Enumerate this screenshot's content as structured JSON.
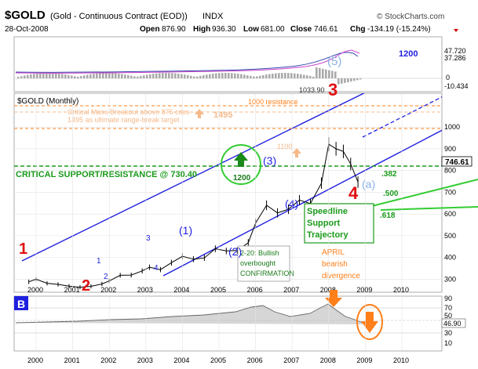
{
  "header": {
    "symbol": "$GOLD",
    "name": "(Gold - Continuous Contract (EOD))",
    "exchange": "INDX",
    "date": "28-Oct-2008",
    "source": "© StockCharts.com",
    "open_label": "Open",
    "open": "876.90",
    "high_label": "High",
    "high": "936.30",
    "low_label": "Low",
    "low": "681.00",
    "close_label": "Close",
    "close": "746.61",
    "chg_label": "Chg",
    "chg": "-134.19 (-15.24%)"
  },
  "macd_panel": {
    "labels": [
      "47.720",
      "37.286",
      "0",
      "-10.434"
    ],
    "peak_label": "1033.90",
    "wave_label": "(5)"
  },
  "main_panel": {
    "title": "$GOLD (Monthly)",
    "y_ticks": [
      "1000",
      "900",
      "800",
      "700",
      "600",
      "500",
      "400",
      "300"
    ],
    "price_tag": "746.61",
    "resistance_label": "1000 resistance",
    "critical_mass_line1": "Critical Mass Breakout above 875 cites",
    "critical_mass_line2": "1495 as ultimate range-break target",
    "target_1495": "1495",
    "target_1100": "1100",
    "target_1200_circle": "1200",
    "target_1200_channel": "1200",
    "support_label": "CRITICAL SUPPORT/RESISTANCE @ 730.40",
    "fib_382": ".382",
    "fib_500": ".500",
    "fib_618": ".618",
    "speedline_line1": "Speedline",
    "speedline_line2": "Support",
    "speedline_line3": "Trajectory",
    "wave_1_red": "1",
    "wave_2_red": "2",
    "wave_3_red": "3",
    "wave_4_red": "4",
    "minor_1": "1",
    "minor_2": "2",
    "minor_3": "3",
    "minor_4": "4",
    "int_1": "(1)",
    "int_2": "(2)",
    "int_3": "(3)",
    "int_4": "(4)",
    "int_a": "(a)",
    "april_line1": "APRIL",
    "april_line2": "bearish",
    "april_line3": "divergence",
    "bullish_line1": "2-20: Bullish",
    "bullish_line2": "overbought",
    "bullish_line3": "CONFIRMATION",
    "x_ticks": [
      "2000",
      "2001",
      "2002",
      "2003",
      "2004",
      "2005",
      "2006",
      "2007",
      "2008",
      "2009",
      "2010"
    ]
  },
  "rsi_panel": {
    "badge": "B",
    "labels": [
      "90",
      "70",
      "50",
      "46.90",
      "30",
      "10"
    ]
  },
  "colors": {
    "channel": "#1f1fe0",
    "wave_red": "#e01010",
    "support_green": "#1a9a1a",
    "orange": "#ff7f1a",
    "light_orange": "#f5b98a",
    "price": "#000000"
  },
  "chart_data": {
    "type": "line",
    "title": "$GOLD (Monthly)",
    "xlabel": "",
    "ylabel": "",
    "ylim": [
      240,
      1080
    ],
    "x": [
      1999.8,
      2000.0,
      2000.3,
      2000.6,
      2000.9,
      2001.2,
      2001.5,
      2001.8,
      2002.0,
      2002.3,
      2002.6,
      2002.9,
      2003.1,
      2003.4,
      2003.7,
      2004.0,
      2004.3,
      2004.6,
      2004.9,
      2005.2,
      2005.5,
      2005.8,
      2006.0,
      2006.3,
      2006.6,
      2006.9,
      2007.2,
      2007.5,
      2007.8,
      2008.0,
      2008.2,
      2008.4,
      2008.6,
      2008.8
    ],
    "series": [
      {
        "name": "$GOLD close",
        "values": [
          288,
          300,
          281,
          276,
          268,
          263,
          267,
          278,
          292,
          318,
          319,
          338,
          355,
          344,
          376,
          405,
          392,
          398,
          440,
          430,
          432,
          468,
          558,
          640,
          605,
          622,
          664,
          648,
          742,
          921,
          900,
          888,
          830,
          746.61
        ]
      }
    ]
  }
}
